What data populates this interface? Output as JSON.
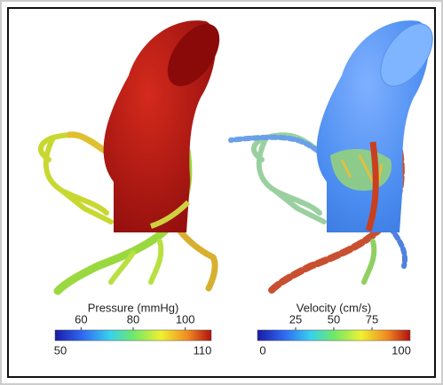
{
  "panels": [
    {
      "colorbar": {
        "label": "Pressure (mmHg)",
        "min": 50,
        "max": 110,
        "ticks": [
          60,
          80,
          100
        ]
      }
    },
    {
      "colorbar": {
        "label": "Velocity (cm/s)",
        "min": 0,
        "max": 100,
        "ticks": [
          25,
          50,
          75
        ]
      }
    }
  ]
}
